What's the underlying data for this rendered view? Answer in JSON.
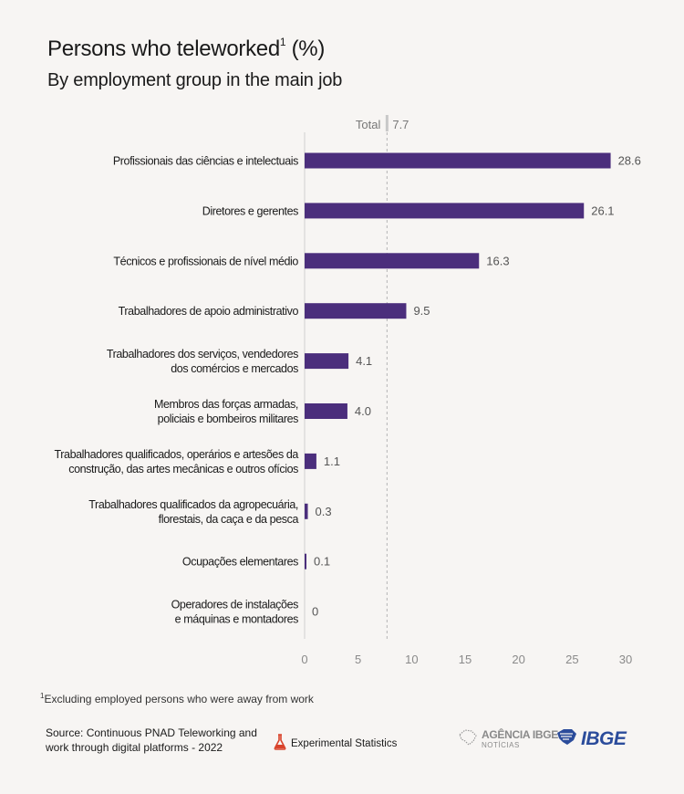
{
  "header": {
    "title": "Persons who teleworked",
    "title_sup": "1",
    "title_suffix": " (%)",
    "subtitle": "By employment group in the main job"
  },
  "chart_data": {
    "type": "bar",
    "orientation": "horizontal",
    "categories": [
      [
        "Profissionais das ciências e intelectuais"
      ],
      [
        "Diretores e gerentes"
      ],
      [
        "Técnicos e profissionais de nível médio"
      ],
      [
        "Trabalhadores de apoio administrativo"
      ],
      [
        "Trabalhadores dos serviços, vendedores",
        "dos comércios e mercados"
      ],
      [
        "Membros das forças armadas,",
        "policiais e bombeiros militares"
      ],
      [
        "Trabalhadores qualificados, operários e artesões da",
        "construção, das artes mecânicas e outros ofícios"
      ],
      [
        "Trabalhadores qualificados da agropecuária,",
        "florestais, da caça e da pesca"
      ],
      [
        "Ocupações elementares"
      ],
      [
        "Operadores de instalações",
        "e máquinas e montadores"
      ]
    ],
    "values": [
      28.6,
      26.1,
      16.3,
      9.5,
      4.1,
      4.0,
      1.1,
      0.3,
      0.1,
      0
    ],
    "value_labels": [
      "28.6",
      "26.1",
      "16.3",
      "9.5",
      "4.1",
      "4.0",
      "1.1",
      "0.3",
      "0.1",
      "0"
    ],
    "reference": {
      "label": "Total",
      "value": 7.7,
      "value_label": "7.7"
    },
    "xlim": [
      0,
      30
    ],
    "xticks": [
      0,
      5,
      10,
      15,
      20,
      25,
      30
    ],
    "grid": false,
    "bar_color": "#4b2e7c",
    "reference_color": "#c8c8c8"
  },
  "footnote": {
    "sup": "1",
    "text": "Excluding employed persons who were away from work"
  },
  "footer": {
    "source": "Source: Continuous PNAD Teleworking and work through digital platforms - 2022",
    "experimental": "Experimental Statistics",
    "agencia_name": "AGÊNCIA",
    "agencia_brand": "IBGE",
    "agencia_sub": "NOTÍCIAS",
    "logo": "IBGE",
    "experimental_color": "#d9432b",
    "ibge_color": "#2b4c9b"
  }
}
